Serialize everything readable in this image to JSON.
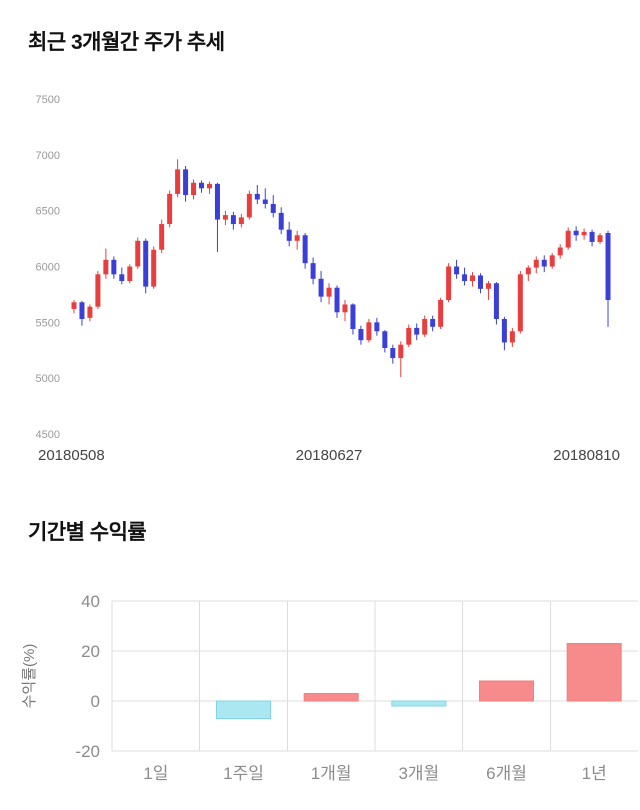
{
  "page": {
    "background": "#ffffff"
  },
  "price_section": {
    "title": "최근 3개월간 주가 추세"
  },
  "returns_section": {
    "title": "기간별 수익률"
  },
  "chart_data": [
    {
      "type": "candlestick",
      "title": "최근 3개월간 주가 추세",
      "ylim": [
        4500,
        7500
      ],
      "yticks": [
        7500,
        7000,
        6500,
        6000,
        5500,
        5000,
        4500
      ],
      "x_labels": [
        "20180508",
        "20180627",
        "20180810"
      ],
      "up_color": "#e83e3e",
      "down_color": "#3a3fd8",
      "axis_text_color": "#999999",
      "candles": [
        [
          5620,
          5700,
          5580,
          5680
        ],
        [
          5680,
          5690,
          5470,
          5530
        ],
        [
          5540,
          5660,
          5510,
          5640
        ],
        [
          5640,
          5960,
          5620,
          5930
        ],
        [
          5930,
          6160,
          5890,
          6060
        ],
        [
          6060,
          6090,
          5890,
          5930
        ],
        [
          5930,
          5990,
          5840,
          5870
        ],
        [
          5870,
          6020,
          5850,
          6000
        ],
        [
          6000,
          6260,
          5980,
          6230
        ],
        [
          6230,
          6250,
          5760,
          5820
        ],
        [
          5820,
          6180,
          5800,
          6150
        ],
        [
          6150,
          6420,
          6120,
          6380
        ],
        [
          6380,
          6680,
          6350,
          6650
        ],
        [
          6650,
          6960,
          6620,
          6870
        ],
        [
          6870,
          6900,
          6580,
          6640
        ],
        [
          6640,
          6780,
          6600,
          6750
        ],
        [
          6750,
          6770,
          6660,
          6700
        ],
        [
          6700,
          6760,
          6650,
          6740
        ],
        [
          6740,
          6750,
          6130,
          6420
        ],
        [
          6420,
          6500,
          6370,
          6460
        ],
        [
          6460,
          6490,
          6330,
          6380
        ],
        [
          6380,
          6470,
          6350,
          6440
        ],
        [
          6440,
          6680,
          6420,
          6650
        ],
        [
          6650,
          6730,
          6560,
          6600
        ],
        [
          6600,
          6700,
          6520,
          6560
        ],
        [
          6560,
          6640,
          6440,
          6480
        ],
        [
          6480,
          6530,
          6290,
          6330
        ],
        [
          6330,
          6400,
          6180,
          6230
        ],
        [
          6230,
          6320,
          6150,
          6280
        ],
        [
          6280,
          6300,
          5980,
          6030
        ],
        [
          6030,
          6080,
          5840,
          5890
        ],
        [
          5890,
          5960,
          5680,
          5730
        ],
        [
          5730,
          5850,
          5660,
          5810
        ],
        [
          5810,
          5830,
          5540,
          5590
        ],
        [
          5590,
          5700,
          5510,
          5660
        ],
        [
          5660,
          5670,
          5390,
          5440
        ],
        [
          5440,
          5470,
          5300,
          5340
        ],
        [
          5340,
          5530,
          5320,
          5500
        ],
        [
          5500,
          5540,
          5380,
          5420
        ],
        [
          5420,
          5430,
          5230,
          5270
        ],
        [
          5270,
          5300,
          5130,
          5180
        ],
        [
          5180,
          5330,
          5010,
          5300
        ],
        [
          5300,
          5480,
          5280,
          5450
        ],
        [
          5450,
          5490,
          5340,
          5390
        ],
        [
          5390,
          5560,
          5370,
          5530
        ],
        [
          5530,
          5560,
          5420,
          5460
        ],
        [
          5460,
          5720,
          5440,
          5700
        ],
        [
          5700,
          6030,
          5680,
          6000
        ],
        [
          6000,
          6060,
          5890,
          5930
        ],
        [
          5930,
          5990,
          5830,
          5870
        ],
        [
          5870,
          5950,
          5820,
          5920
        ],
        [
          5920,
          5940,
          5760,
          5800
        ],
        [
          5800,
          5870,
          5700,
          5850
        ],
        [
          5850,
          5860,
          5480,
          5530
        ],
        [
          5530,
          5550,
          5250,
          5320
        ],
        [
          5320,
          5450,
          5280,
          5420
        ],
        [
          5420,
          5960,
          5400,
          5930
        ],
        [
          5930,
          6010,
          5870,
          5990
        ],
        [
          5990,
          6090,
          5940,
          6060
        ],
        [
          6060,
          6100,
          5950,
          6000
        ],
        [
          6000,
          6120,
          5980,
          6100
        ],
        [
          6100,
          6200,
          6070,
          6170
        ],
        [
          6170,
          6350,
          6150,
          6320
        ],
        [
          6320,
          6360,
          6230,
          6280
        ],
        [
          6280,
          6340,
          6240,
          6310
        ],
        [
          6310,
          6330,
          6180,
          6220
        ],
        [
          6220,
          6300,
          6200,
          6280
        ],
        [
          6300,
          6320,
          5460,
          5700
        ]
      ]
    },
    {
      "type": "bar",
      "title": "기간별 수익률",
      "categories": [
        "1일",
        "1주일",
        "1개월",
        "3개월",
        "6개월",
        "1년"
      ],
      "values": [
        0,
        -7,
        3,
        -2,
        8,
        23
      ],
      "ylabel": "수익률(%)",
      "ylim": [
        -20,
        40
      ],
      "yticks": [
        40,
        20,
        0,
        -20
      ],
      "grid": true,
      "positive_color": "#f78b8b",
      "positive_stroke": "#f27e7e",
      "negative_color": "#abe7f1",
      "negative_stroke": "#7fd4e6",
      "grid_color": "#dddddd",
      "axis_text_color": "#8c8c8c"
    }
  ]
}
